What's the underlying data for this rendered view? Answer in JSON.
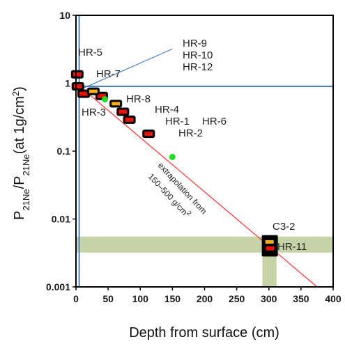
{
  "chart_data": {
    "type": "scatter",
    "xlabel": "Depth from surface (cm)",
    "ylabel": {
      "main": "P",
      "sub1": "21Ne",
      "slash": "/P",
      "sub2": "21Ne",
      "rest": "(at 1g/cm",
      "sup": "2",
      "close": ")"
    },
    "xlim": [
      0,
      400
    ],
    "ylim": [
      0.001,
      10
    ],
    "ylog": true,
    "x_ticks": [
      "0",
      "50",
      "100",
      "150",
      "200",
      "250",
      "300",
      "350",
      "400"
    ],
    "x_tick_values": [
      0,
      50,
      100,
      150,
      200,
      250,
      300,
      350,
      400
    ],
    "y_ticks": [
      "10",
      "1",
      "0.1",
      "0.01",
      "0.001"
    ],
    "y_tick_values": [
      10,
      1,
      0.1,
      0.01,
      0.001
    ],
    "reference_lines": {
      "horizontal_y": 0.9,
      "vertical_x": 5
    },
    "fit_line": {
      "from": [
        0,
        1.0
      ],
      "to": [
        375,
        0.001
      ],
      "color": "#ff3333"
    },
    "bands": [
      {
        "y_range": [
          0.0032,
          0.0055
        ]
      },
      {
        "x_range": [
          290,
          312
        ],
        "y_range": [
          0.001,
          0.0055
        ]
      }
    ],
    "samples_red": [
      {
        "x": 2,
        "y": 1.35
      },
      {
        "x": 3,
        "y": 0.9
      },
      {
        "x": 12,
        "y": 0.7
      },
      {
        "x": 40,
        "y": 0.65
      },
      {
        "x": 73,
        "y": 0.38
      },
      {
        "x": 83,
        "y": 0.29
      },
      {
        "x": 113,
        "y": 0.18
      },
      {
        "x": 302,
        "y": 0.0037
      }
    ],
    "samples_orange": [
      {
        "x": 27,
        "y": 0.76
      },
      {
        "x": 62,
        "y": 0.5
      },
      {
        "x": 301,
        "y": 0.0046
      }
    ],
    "green_points": [
      {
        "x": 45,
        "y": 0.58
      },
      {
        "x": 150,
        "y": 0.082
      }
    ],
    "highlight_box": {
      "x_range": [
        289,
        314
      ],
      "y_range": [
        0.0028,
        0.0058
      ]
    },
    "pointer": {
      "from": [
        12,
        0.85
      ],
      "to": [
        150,
        3.2
      ]
    },
    "sample_labels": [
      "HR-5",
      "HR-7",
      "HR-9",
      "HR-10",
      "HR-12",
      "HR-8",
      "HR-3",
      "HR-4",
      "HR-1",
      "HR-6",
      "HR-2",
      "C3-2",
      "HR-11"
    ],
    "annotation": {
      "line1": "extrapolation from",
      "line2": "150–500 g/cm",
      "sup": "2"
    },
    "colors": {
      "red": "#e8120c",
      "orange": "#f5b020",
      "green": "#22dd22",
      "band": "#c6d3a7",
      "ref_line": "#4a7fc9",
      "fit_line": "#ff3333"
    }
  }
}
